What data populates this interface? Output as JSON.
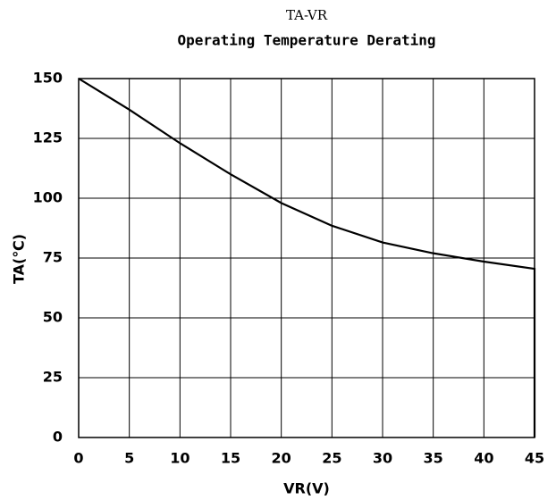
{
  "chart_data": {
    "type": "line",
    "title": "TA-VR",
    "subtitle": "Operating Temperature Derating",
    "x_label": "VR(V)",
    "y_label": "TA(℃)",
    "x": [
      0,
      5,
      10,
      15,
      20,
      25,
      30,
      35,
      40,
      45,
      45
    ],
    "values": [
      150,
      137,
      123,
      110,
      98,
      88.5,
      81.5,
      77,
      73.5,
      70.5,
      0
    ],
    "color": "#000000",
    "xlim": [
      0,
      45
    ],
    "xticks": [
      0,
      5,
      10,
      15,
      20,
      25,
      30,
      35,
      40,
      45
    ],
    "ylim": [
      0,
      150
    ],
    "yticks": [
      0,
      25,
      50,
      75,
      100,
      125,
      150
    ],
    "grid": true
  }
}
